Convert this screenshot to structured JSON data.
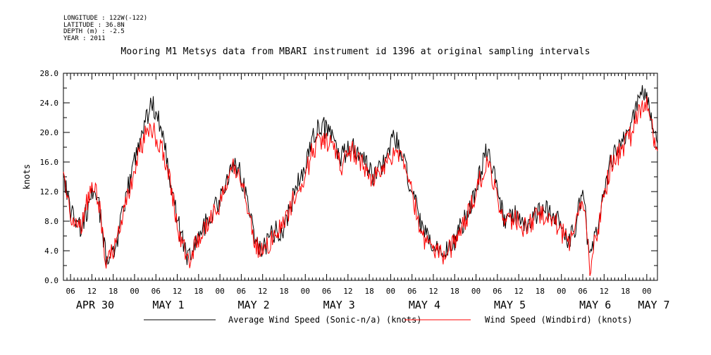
{
  "header": {
    "longitude": "LONGITUDE : 122W(-122)",
    "latitude": "LATITUDE : 36.8N",
    "depth": "DEPTH (m) : -2.5",
    "year": "YEAR : 2011"
  },
  "chart_data": {
    "type": "line",
    "title": "Mooring M1 Metsys data from MBARI instrument id 1396 at original sampling intervals",
    "ylabel": "knots",
    "xlabel": "",
    "ylim": [
      0,
      28
    ],
    "xlim": [
      "2011-04-30T04:00",
      "2011-05-07T03:00"
    ],
    "y_ticks": [
      "0.0",
      "4.0",
      "8.0",
      "12.0",
      "16.0",
      "20.0",
      "24.0",
      "28.0"
    ],
    "x_hour_ticks": [
      "06",
      "12",
      "18",
      "00",
      "06",
      "12",
      "18",
      "00",
      "06",
      "12",
      "18",
      "00",
      "06",
      "12",
      "18",
      "00",
      "06",
      "12",
      "18",
      "00",
      "06",
      "12",
      "18",
      "00",
      "06",
      "12",
      "18",
      "00"
    ],
    "x_day_labels": [
      "APR 30",
      "MAY  1",
      "MAY  2",
      "MAY  3",
      "MAY  4",
      "MAY  5",
      "MAY  6",
      "MAY  7"
    ],
    "grid": false,
    "legend_position": "bottom",
    "series": [
      {
        "name": "Average Wind Speed (Sonic-n/a) (knots)",
        "color": "#000000",
        "x": [
          "2011-04-30T04:00",
          "2011-04-30T06:00",
          "2011-04-30T09:00",
          "2011-04-30T12:00",
          "2011-04-30T14:00",
          "2011-04-30T16:00",
          "2011-04-30T19:00",
          "2011-04-30T22:00",
          "2011-05-01T01:00",
          "2011-05-01T03:00",
          "2011-05-01T05:00",
          "2011-05-01T08:00",
          "2011-05-01T10:00",
          "2011-05-01T12:00",
          "2011-05-01T15:00",
          "2011-05-01T18:00",
          "2011-05-01T21:00",
          "2011-05-02T00:00",
          "2011-05-02T02:00",
          "2011-05-02T04:00",
          "2011-05-02T07:00",
          "2011-05-02T10:00",
          "2011-05-02T12:00",
          "2011-05-02T15:00",
          "2011-05-02T18:00",
          "2011-05-02T21:00",
          "2011-05-03T00:00",
          "2011-05-03T02:00",
          "2011-05-03T04:00",
          "2011-05-03T07:00",
          "2011-05-03T10:00",
          "2011-05-03T13:00",
          "2011-05-03T16:00",
          "2011-05-03T19:00",
          "2011-05-03T22:00",
          "2011-05-04T01:00",
          "2011-05-04T03:00",
          "2011-05-04T06:00",
          "2011-05-04T09:00",
          "2011-05-04T12:00",
          "2011-05-04T15:00",
          "2011-05-04T18:00",
          "2011-05-04T21:00",
          "2011-05-05T00:00",
          "2011-05-05T03:00",
          "2011-05-05T05:00",
          "2011-05-05T08:00",
          "2011-05-05T11:00",
          "2011-05-05T14:00",
          "2011-05-05T17:00",
          "2011-05-05T20:00",
          "2011-05-05T23:00",
          "2011-05-06T02:00",
          "2011-05-06T04:00",
          "2011-05-06T06:00",
          "2011-05-06T08:00",
          "2011-05-06T11:00",
          "2011-05-06T14:00",
          "2011-05-06T17:00",
          "2011-05-06T20:00",
          "2011-05-06T22:00",
          "2011-05-07T00:00",
          "2011-05-07T02:00",
          "2011-05-07T03:00"
        ],
        "values": [
          14.5,
          9.5,
          7.0,
          11.5,
          10.0,
          3.0,
          5.0,
          12.0,
          18.5,
          21.5,
          24.0,
          20.0,
          14.0,
          8.0,
          3.0,
          6.0,
          8.5,
          11.0,
          13.0,
          16.5,
          12.5,
          5.5,
          4.0,
          6.5,
          7.0,
          12.0,
          15.5,
          19.0,
          21.0,
          20.0,
          16.5,
          18.0,
          16.5,
          14.0,
          16.0,
          19.5,
          17.0,
          12.0,
          6.5,
          4.5,
          3.5,
          5.5,
          8.5,
          12.5,
          17.5,
          14.5,
          8.0,
          9.0,
          7.5,
          9.0,
          9.5,
          8.0,
          5.5,
          7.5,
          12.5,
          2.5,
          9.0,
          16.5,
          18.5,
          22.0,
          25.0,
          25.0,
          20.5,
          18.5
        ]
      },
      {
        "name": "Wind Speed (Windbird) (knots)",
        "color": "#ff0000",
        "x": [
          "2011-04-30T04:00",
          "2011-04-30T06:00",
          "2011-04-30T09:00",
          "2011-04-30T12:00",
          "2011-04-30T14:00",
          "2011-04-30T16:00",
          "2011-04-30T19:00",
          "2011-04-30T22:00",
          "2011-05-01T01:00",
          "2011-05-01T03:00",
          "2011-05-01T05:00",
          "2011-05-01T08:00",
          "2011-05-01T10:00",
          "2011-05-01T12:00",
          "2011-05-01T15:00",
          "2011-05-01T18:00",
          "2011-05-01T21:00",
          "2011-05-02T00:00",
          "2011-05-02T02:00",
          "2011-05-02T04:00",
          "2011-05-02T07:00",
          "2011-05-02T10:00",
          "2011-05-02T12:00",
          "2011-05-02T15:00",
          "2011-05-02T18:00",
          "2011-05-02T21:00",
          "2011-05-03T00:00",
          "2011-05-03T02:00",
          "2011-05-03T04:00",
          "2011-05-03T07:00",
          "2011-05-03T10:00",
          "2011-05-03T13:00",
          "2011-05-03T16:00",
          "2011-05-03T19:00",
          "2011-05-03T22:00",
          "2011-05-04T01:00",
          "2011-05-04T03:00",
          "2011-05-04T06:00",
          "2011-05-04T09:00",
          "2011-05-04T12:00",
          "2011-05-04T15:00",
          "2011-05-04T18:00",
          "2011-05-04T21:00",
          "2011-05-05T00:00",
          "2011-05-05T03:00",
          "2011-05-05T05:00",
          "2011-05-05T08:00",
          "2011-05-05T11:00",
          "2011-05-05T14:00",
          "2011-05-05T17:00",
          "2011-05-05T20:00",
          "2011-05-05T23:00",
          "2011-05-06T02:00",
          "2011-05-06T04:00",
          "2011-05-06T06:00",
          "2011-05-06T08:00",
          "2011-05-06T11:00",
          "2011-05-06T14:00",
          "2011-05-06T17:00",
          "2011-05-06T20:00",
          "2011-05-06T22:00",
          "2011-05-07T00:00",
          "2011-05-07T02:00",
          "2011-05-07T03:00"
        ],
        "values": [
          13.5,
          9.0,
          7.5,
          13.0,
          10.5,
          2.0,
          5.5,
          11.0,
          17.0,
          19.5,
          20.5,
          17.5,
          13.5,
          7.5,
          2.5,
          5.5,
          8.0,
          10.5,
          12.5,
          15.5,
          12.0,
          5.0,
          3.5,
          6.0,
          7.5,
          11.5,
          14.0,
          17.5,
          19.0,
          18.5,
          15.5,
          17.5,
          16.0,
          13.5,
          15.5,
          17.5,
          16.5,
          11.5,
          6.0,
          4.0,
          3.0,
          5.0,
          8.0,
          12.0,
          16.0,
          13.5,
          7.5,
          8.5,
          7.0,
          8.5,
          9.0,
          7.5,
          5.0,
          7.0,
          11.5,
          2.0,
          8.5,
          16.0,
          17.5,
          20.0,
          23.0,
          23.5,
          19.5,
          17.5
        ]
      }
    ]
  }
}
